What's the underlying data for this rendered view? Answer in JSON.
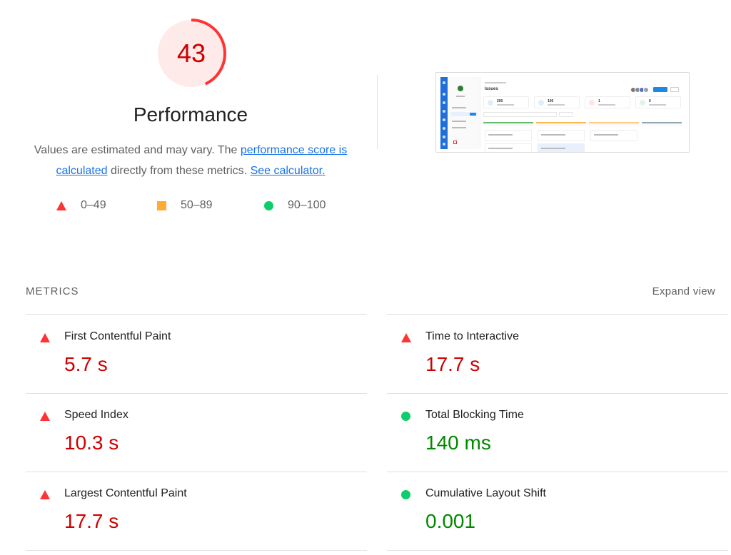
{
  "score": {
    "value": "43",
    "fraction": 0.43,
    "ring_color": "#ff3333",
    "bg_color": "#ffeaea",
    "text_color": "#cc0000"
  },
  "title": "Performance",
  "description": {
    "part1": "Values are estimated and may vary. The ",
    "link1": "performance score is calculated",
    "part2": " directly from these metrics. ",
    "link2": "See calculator."
  },
  "legend": [
    {
      "range": "0–49",
      "icon": "red-triangle-icon",
      "color": "#ff3333"
    },
    {
      "range": "50–89",
      "icon": "orange-square-icon",
      "color": "#ffaa33"
    },
    {
      "range": "90–100",
      "icon": "green-circle-icon",
      "color": "#0cce6b"
    }
  ],
  "thumbnail": {
    "page_title": "Issues",
    "stats": [
      "200",
      "100",
      "1",
      "0"
    ]
  },
  "metrics": {
    "heading": "METRICS",
    "expand_label": "Expand view",
    "items": [
      {
        "label": "First Contentful Paint",
        "value": "5.7 s",
        "status": "fail"
      },
      {
        "label": "Time to Interactive",
        "value": "17.7 s",
        "status": "fail"
      },
      {
        "label": "Speed Index",
        "value": "10.3 s",
        "status": "fail"
      },
      {
        "label": "Total Blocking Time",
        "value": "140 ms",
        "status": "pass"
      },
      {
        "label": "Largest Contentful Paint",
        "value": "17.7 s",
        "status": "fail"
      },
      {
        "label": "Cumulative Layout Shift",
        "value": "0.001",
        "status": "pass"
      }
    ]
  }
}
